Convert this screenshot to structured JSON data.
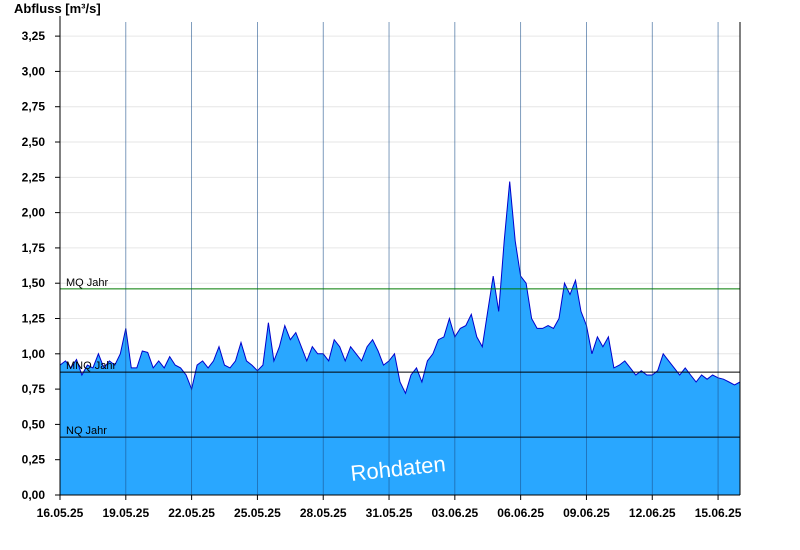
{
  "chart_data": {
    "type": "area",
    "title": "",
    "ylabel": "Abfluss [m³/s]",
    "xlabel": "",
    "ylim": [
      0,
      3.35
    ],
    "xlim": [
      "16.05.25 00:00",
      "16.06.25 00:00"
    ],
    "grid": "horizontal-and-vertical",
    "y_ticks": [
      "0,00",
      "0,25",
      "0,50",
      "0,75",
      "1,00",
      "1,25",
      "1,50",
      "1,75",
      "2,00",
      "2,25",
      "2,50",
      "2,75",
      "3,00",
      "3,25"
    ],
    "x_ticks": [
      "16.05.25",
      "19.05.25",
      "22.05.25",
      "25.05.25",
      "28.05.25",
      "31.05.25",
      "03.06.25",
      "06.06.25",
      "09.06.25",
      "12.06.25",
      "15.06.25"
    ],
    "series": [
      {
        "type": "area",
        "values": [
          [
            "16.05.25 00:00",
            0.92
          ],
          [
            "16.05.25 06:00",
            0.95
          ],
          [
            "16.05.25 12:00",
            0.9
          ],
          [
            "16.05.25 18:00",
            0.96
          ],
          [
            "17.05.25 00:00",
            0.85
          ],
          [
            "17.05.25 06:00",
            0.92
          ],
          [
            "17.05.25 12:00",
            0.9
          ],
          [
            "17.05.25 18:00",
            1.0
          ],
          [
            "18.05.25 00:00",
            0.9
          ],
          [
            "18.05.25 06:00",
            0.95
          ],
          [
            "18.05.25 12:00",
            0.92
          ],
          [
            "18.05.25 18:00",
            1.0
          ],
          [
            "19.05.25 00:00",
            1.18
          ],
          [
            "19.05.25 06:00",
            0.9
          ],
          [
            "19.05.25 12:00",
            0.9
          ],
          [
            "19.05.25 18:00",
            1.02
          ],
          [
            "20.05.25 00:00",
            1.01
          ],
          [
            "20.05.25 06:00",
            0.9
          ],
          [
            "20.05.25 12:00",
            0.95
          ],
          [
            "20.05.25 18:00",
            0.9
          ],
          [
            "21.05.25 00:00",
            0.98
          ],
          [
            "21.05.25 06:00",
            0.92
          ],
          [
            "21.05.25 12:00",
            0.9
          ],
          [
            "21.05.25 18:00",
            0.85
          ],
          [
            "22.05.25 00:00",
            0.75
          ],
          [
            "22.05.25 06:00",
            0.92
          ],
          [
            "22.05.25 12:00",
            0.95
          ],
          [
            "22.05.25 18:00",
            0.9
          ],
          [
            "23.05.25 00:00",
            0.95
          ],
          [
            "23.05.25 06:00",
            1.05
          ],
          [
            "23.05.25 12:00",
            0.92
          ],
          [
            "23.05.25 18:00",
            0.9
          ],
          [
            "24.05.25 00:00",
            0.95
          ],
          [
            "24.05.25 06:00",
            1.08
          ],
          [
            "24.05.25 12:00",
            0.95
          ],
          [
            "24.05.25 18:00",
            0.92
          ],
          [
            "25.05.25 00:00",
            0.88
          ],
          [
            "25.05.25 06:00",
            0.92
          ],
          [
            "25.05.25 12:00",
            1.22
          ],
          [
            "25.05.25 18:00",
            0.95
          ],
          [
            "26.05.25 00:00",
            1.05
          ],
          [
            "26.05.25 06:00",
            1.2
          ],
          [
            "26.05.25 12:00",
            1.1
          ],
          [
            "26.05.25 18:00",
            1.15
          ],
          [
            "27.05.25 00:00",
            1.05
          ],
          [
            "27.05.25 06:00",
            0.95
          ],
          [
            "27.05.25 12:00",
            1.05
          ],
          [
            "27.05.25 18:00",
            1.0
          ],
          [
            "28.05.25 00:00",
            1.0
          ],
          [
            "28.05.25 06:00",
            0.95
          ],
          [
            "28.05.25 12:00",
            1.1
          ],
          [
            "28.05.25 18:00",
            1.05
          ],
          [
            "29.05.25 00:00",
            0.95
          ],
          [
            "29.05.25 06:00",
            1.05
          ],
          [
            "29.05.25 12:00",
            1.0
          ],
          [
            "29.05.25 18:00",
            0.95
          ],
          [
            "30.05.25 00:00",
            1.05
          ],
          [
            "30.05.25 06:00",
            1.1
          ],
          [
            "30.05.25 12:00",
            1.02
          ],
          [
            "30.05.25 18:00",
            0.92
          ],
          [
            "31.05.25 00:00",
            0.95
          ],
          [
            "31.05.25 06:00",
            1.0
          ],
          [
            "31.05.25 12:00",
            0.8
          ],
          [
            "31.05.25 18:00",
            0.72
          ],
          [
            "01.06.25 00:00",
            0.85
          ],
          [
            "01.06.25 06:00",
            0.9
          ],
          [
            "01.06.25 12:00",
            0.8
          ],
          [
            "01.06.25 18:00",
            0.95
          ],
          [
            "02.06.25 00:00",
            1.0
          ],
          [
            "02.06.25 06:00",
            1.1
          ],
          [
            "02.06.25 12:00",
            1.12
          ],
          [
            "02.06.25 18:00",
            1.25
          ],
          [
            "03.06.25 00:00",
            1.12
          ],
          [
            "03.06.25 06:00",
            1.18
          ],
          [
            "03.06.25 12:00",
            1.2
          ],
          [
            "03.06.25 18:00",
            1.28
          ],
          [
            "04.06.25 00:00",
            1.12
          ],
          [
            "04.06.25 06:00",
            1.05
          ],
          [
            "04.06.25 12:00",
            1.3
          ],
          [
            "04.06.25 18:00",
            1.55
          ],
          [
            "05.06.25 00:00",
            1.3
          ],
          [
            "05.06.25 06:00",
            1.8
          ],
          [
            "05.06.25 12:00",
            2.22
          ],
          [
            "05.06.25 18:00",
            1.8
          ],
          [
            "06.06.25 00:00",
            1.55
          ],
          [
            "06.06.25 06:00",
            1.5
          ],
          [
            "06.06.25 12:00",
            1.25
          ],
          [
            "06.06.25 18:00",
            1.18
          ],
          [
            "07.06.25 00:00",
            1.18
          ],
          [
            "07.06.25 06:00",
            1.2
          ],
          [
            "07.06.25 12:00",
            1.18
          ],
          [
            "07.06.25 18:00",
            1.25
          ],
          [
            "08.06.25 00:00",
            1.5
          ],
          [
            "08.06.25 06:00",
            1.42
          ],
          [
            "08.06.25 12:00",
            1.52
          ],
          [
            "08.06.25 18:00",
            1.3
          ],
          [
            "09.06.25 00:00",
            1.2
          ],
          [
            "09.06.25 06:00",
            1.0
          ],
          [
            "09.06.25 12:00",
            1.12
          ],
          [
            "09.06.25 18:00",
            1.05
          ],
          [
            "10.06.25 00:00",
            1.12
          ],
          [
            "10.06.25 06:00",
            0.9
          ],
          [
            "10.06.25 12:00",
            0.92
          ],
          [
            "10.06.25 18:00",
            0.95
          ],
          [
            "11.06.25 00:00",
            0.9
          ],
          [
            "11.06.25 06:00",
            0.85
          ],
          [
            "11.06.25 12:00",
            0.88
          ],
          [
            "11.06.25 18:00",
            0.85
          ],
          [
            "12.06.25 00:00",
            0.85
          ],
          [
            "12.06.25 06:00",
            0.88
          ],
          [
            "12.06.25 12:00",
            1.0
          ],
          [
            "12.06.25 18:00",
            0.95
          ],
          [
            "13.06.25 00:00",
            0.9
          ],
          [
            "13.06.25 06:00",
            0.85
          ],
          [
            "13.06.25 12:00",
            0.9
          ],
          [
            "13.06.25 18:00",
            0.85
          ],
          [
            "14.06.25 00:00",
            0.8
          ],
          [
            "14.06.25 06:00",
            0.85
          ],
          [
            "14.06.25 12:00",
            0.82
          ],
          [
            "14.06.25 18:00",
            0.85
          ],
          [
            "15.06.25 00:00",
            0.83
          ],
          [
            "15.06.25 06:00",
            0.82
          ],
          [
            "15.06.25 12:00",
            0.8
          ],
          [
            "15.06.25 18:00",
            0.78
          ],
          [
            "16.06.25 00:00",
            0.8
          ]
        ],
        "fill": "#29a7ff",
        "stroke": "#0000cc"
      }
    ],
    "reference_lines": [
      {
        "label": "MQ Jahr",
        "value": 1.46,
        "color": "#007a00"
      },
      {
        "label": "MNQ Jahr",
        "value": 0.87,
        "color": "#000000"
      },
      {
        "label": "NQ Jahr",
        "value": 0.41,
        "color": "#000000"
      }
    ],
    "watermark": "Rohdaten"
  }
}
